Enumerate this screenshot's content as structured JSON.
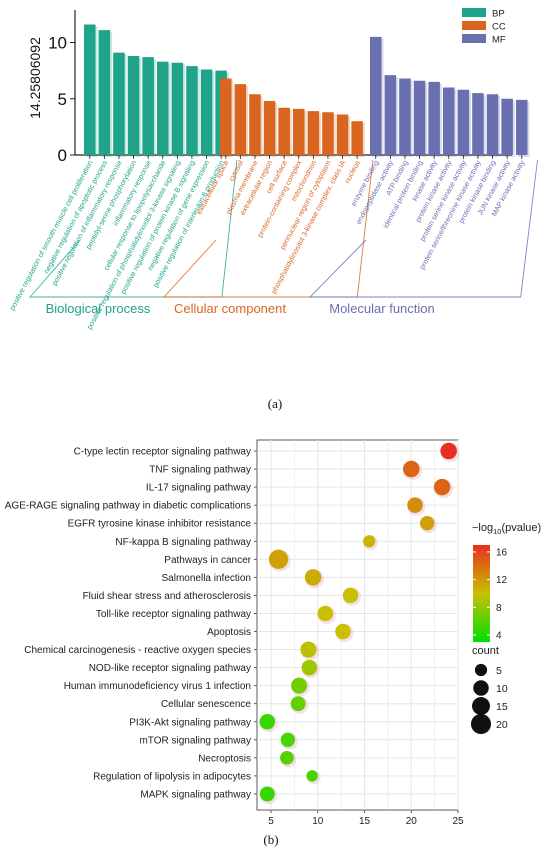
{
  "panels": {
    "a": "(a)",
    "b": "(b)"
  },
  "chart_data": [
    {
      "type": "bar",
      "panel": "a",
      "ylabel": "14.25806092",
      "ylim": [
        0,
        12
      ],
      "yticks": [
        0,
        5,
        10
      ],
      "legend": {
        "placement": "top-right",
        "entries": [
          {
            "name": "BP",
            "color": "#1fa38a"
          },
          {
            "name": "CC",
            "color": "#d9651f"
          },
          {
            "name": "MF",
            "color": "#6a6fb0"
          }
        ]
      },
      "groups": [
        {
          "key": "BP",
          "label": "Biological process",
          "color": "#1fa38a",
          "categories": [
            "positive regulation of smooth muscle cell proliferation",
            "negative regulation of apoptotic process",
            "positive regulation of inflammatory response",
            "peptidyl-serine phosphorylation",
            "inflammatory response",
            "cellular response to lipopolysaccharide",
            "positive regulation of phosphatidylinositol 3-kinase signaling",
            "positive regulation of protein kinase B signaling",
            "negative regulation of gene expression",
            "positive regulation of interleukin-6 production"
          ],
          "values": [
            11.6,
            11.1,
            9.1,
            8.8,
            8.7,
            8.3,
            8.2,
            7.9,
            7.6,
            7.5
          ]
        },
        {
          "key": "CC",
          "label": "Cellular component",
          "color": "#d9651f",
          "categories": [
            "extracellular space",
            "cytosol",
            "plasma membrane",
            "extracellular region",
            "cell surface",
            "protein-containing complex",
            "mitochondrion",
            "perinuclear region of cytoplasm",
            "phosphatidylinositol 3-kinase complex, class IA",
            "nucleus"
          ],
          "values": [
            6.8,
            6.3,
            5.4,
            4.8,
            4.2,
            4.1,
            3.9,
            3.8,
            3.6,
            3.0
          ]
        },
        {
          "key": "MF",
          "label": "Molecular function",
          "color": "#6a6fb0",
          "categories": [
            "enzyme binding",
            "endopeptidase activity",
            "ATP binding",
            "identical protein binding",
            "kinase activity",
            "protein kinase activity",
            "protein serine kinase activity",
            "protein serine/threonine kinase activity",
            "protein kinase binding",
            "JUN kinase activity",
            "MAP kinase activity"
          ],
          "values": [
            10.5,
            7.1,
            6.8,
            6.6,
            6.5,
            6.0,
            5.8,
            5.5,
            5.4,
            5.0,
            4.9
          ]
        }
      ]
    },
    {
      "type": "scatter",
      "panel": "b",
      "xlim": [
        3.5,
        25
      ],
      "xticks": [
        5,
        10,
        15,
        20,
        25
      ],
      "grid": true,
      "categories": [
        "C-type lectin receptor signaling pathway",
        "TNF signaling pathway",
        "IL-17 signaling pathway",
        "AGE-RAGE signaling pathway in diabetic complications",
        "EGFR tyrosine kinase inhibitor resistance",
        "NF-kappa B signaling pathway",
        "Pathways in cancer",
        "Salmonella infection",
        "Fluid shear stress and atherosclerosis",
        "Toll-like receptor signaling pathway",
        "Apoptosis",
        "Chemical carcinogenesis - reactive oxygen species",
        "NOD-like receptor signaling pathway",
        "Human immunodeficiency virus 1 infection",
        "Cellular senescence",
        "PI3K-Akt signaling pathway",
        "mTOR signaling pathway",
        "Necroptosis",
        "Regulation of lipolysis in adipocytes",
        "MAPK signaling pathway"
      ],
      "x": [
        24.0,
        20.0,
        23.3,
        20.4,
        21.7,
        15.5,
        5.8,
        9.5,
        13.5,
        10.8,
        12.7,
        9.0,
        9.1,
        8.0,
        7.9,
        4.6,
        6.8,
        6.7,
        9.4,
        4.6
      ],
      "count": [
        12,
        12,
        12,
        10,
        8,
        5,
        18,
        12,
        10,
        10,
        10,
        11,
        10,
        11,
        9,
        10,
        8,
        7,
        4,
        9
      ],
      "pvalue_neglog10": [
        17.0,
        14.5,
        14.5,
        12.5,
        11.5,
        10.5,
        11.5,
        11.0,
        10.0,
        10.0,
        10.0,
        9.5,
        8.5,
        7.0,
        6.5,
        5.0,
        5.5,
        6.0,
        5.5,
        5.0
      ],
      "color_legend": {
        "title_prefix": "−log",
        "title_sub": "10",
        "title_suffix": "(pvalue)",
        "ticks": [
          4,
          8,
          12,
          16
        ],
        "range": [
          3,
          17
        ],
        "colors": [
          "#00e000",
          "#c8c000",
          "#e83020"
        ]
      },
      "size_legend": {
        "title": "count",
        "values": [
          5,
          10,
          15,
          20
        ]
      }
    }
  ]
}
